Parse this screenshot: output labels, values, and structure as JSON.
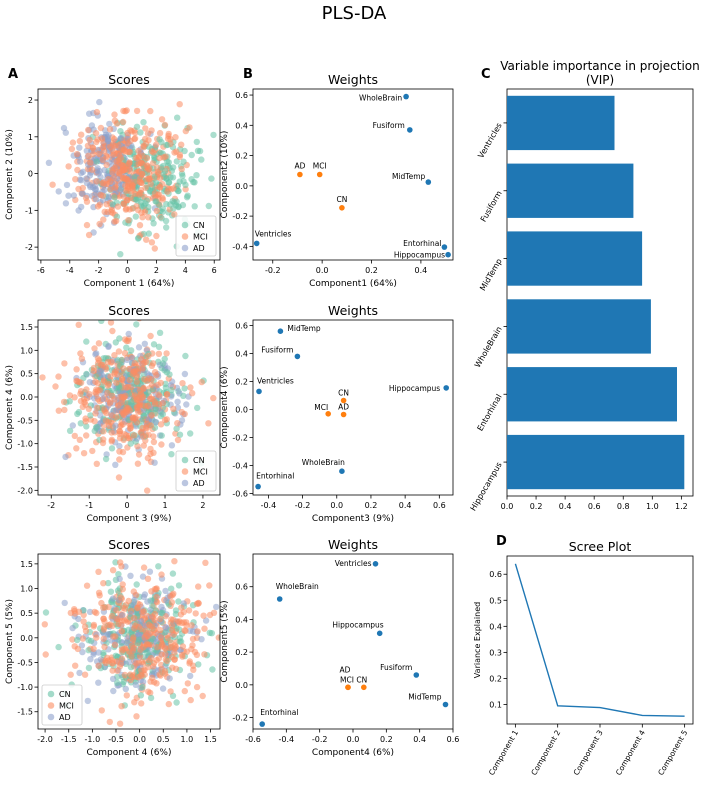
{
  "figure": {
    "title": "PLS-DA",
    "panel_letters": [
      "A",
      "B",
      "C",
      "D"
    ]
  },
  "colors": {
    "CN": "#66c2a5",
    "MCI": "#fc8d62",
    "AD": "#8da0cb",
    "outcome_point": "#ff7f0e",
    "variable_point": "#1f77b4",
    "bar": "#1f77b4",
    "line": "#1f77b4"
  },
  "chart_data": [
    {
      "id": "scores1",
      "type": "scatter",
      "title": "Scores",
      "xlabel": "Component 1 (64%)",
      "ylabel": "Component 2 (10%)",
      "xlim": [
        -6.2,
        6.4
      ],
      "ylim": [
        -2.35,
        2.3
      ],
      "xticks": [
        -6,
        -4,
        -2,
        0,
        2,
        4,
        6
      ],
      "yticks": [
        -2,
        -1,
        0,
        1,
        2
      ],
      "legend": {
        "position": "bottom-right",
        "entries": [
          "CN",
          "MCI",
          "AD"
        ]
      },
      "series": [
        {
          "name": "CN",
          "n": 220,
          "x_mean": 1.6,
          "x_sd": 1.5,
          "y_mean": -0.2,
          "y_sd": 0.7,
          "seed": 11
        },
        {
          "name": "MCI",
          "n": 360,
          "x_mean": 0.1,
          "x_sd": 1.7,
          "y_mean": 0.05,
          "y_sd": 0.7,
          "seed": 12
        },
        {
          "name": "AD",
          "n": 200,
          "x_mean": -1.7,
          "x_sd": 1.4,
          "y_mean": 0.2,
          "y_sd": 0.65,
          "seed": 13
        }
      ]
    },
    {
      "id": "weights1",
      "type": "scatter",
      "title": "Weights",
      "xlabel": "Component1 (64%)",
      "ylabel": "Component2 (10%)",
      "xlim": [
        -0.28,
        0.53
      ],
      "ylim": [
        -0.49,
        0.64
      ],
      "xticks": [
        -0.2,
        0.0,
        0.2,
        0.4
      ],
      "yticks": [
        -0.4,
        -0.2,
        0.0,
        0.2,
        0.4,
        0.6
      ],
      "points": [
        {
          "label": "WholeBrain",
          "x": 0.34,
          "y": 0.59,
          "kind": "variable",
          "anchor": "end",
          "dx": -4,
          "dy": 4
        },
        {
          "label": "Fusiform",
          "x": 0.355,
          "y": 0.37,
          "kind": "variable",
          "anchor": "end",
          "dx": -5,
          "dy": -2
        },
        {
          "label": "MidTemp",
          "x": 0.43,
          "y": 0.025,
          "kind": "variable",
          "anchor": "end",
          "dx": -3,
          "dy": -3
        },
        {
          "label": "Entorhinal",
          "x": 0.495,
          "y": -0.405,
          "kind": "variable",
          "anchor": "end",
          "dx": -3,
          "dy": -1
        },
        {
          "label": "Hippocampus",
          "x": 0.51,
          "y": -0.455,
          "kind": "variable",
          "anchor": "end",
          "dx": -3,
          "dy": 3
        },
        {
          "label": "Ventricles",
          "x": -0.265,
          "y": -0.38,
          "kind": "variable",
          "anchor": "start",
          "dx": -2,
          "dy": -7
        },
        {
          "label": "AD",
          "x": -0.09,
          "y": 0.075,
          "kind": "outcome",
          "anchor": "middle",
          "dx": 0,
          "dy": -6
        },
        {
          "label": "MCI",
          "x": -0.01,
          "y": 0.075,
          "kind": "outcome",
          "anchor": "middle",
          "dx": 0,
          "dy": -6
        },
        {
          "label": "CN",
          "x": 0.08,
          "y": -0.145,
          "kind": "outcome",
          "anchor": "middle",
          "dx": 0,
          "dy": -6
        }
      ]
    },
    {
      "id": "scores2",
      "type": "scatter",
      "title": "Scores",
      "xlabel": "Component 3 (9%)",
      "ylabel": "Component 4 (6%)",
      "xlim": [
        -2.35,
        2.45
      ],
      "ylim": [
        -2.1,
        1.65
      ],
      "xticks": [
        -2,
        -1,
        0,
        1,
        2
      ],
      "yticks": [
        -2.0,
        -1.5,
        -1.0,
        -0.5,
        0.0,
        0.5,
        1.0,
        1.5
      ],
      "legend": {
        "position": "bottom-right",
        "entries": [
          "CN",
          "MCI",
          "AD"
        ]
      },
      "series": [
        {
          "name": "CN",
          "n": 220,
          "x_mean": 0.1,
          "x_sd": 0.75,
          "y_mean": 0.05,
          "y_sd": 0.6,
          "seed": 21
        },
        {
          "name": "MCI",
          "n": 360,
          "x_mean": -0.05,
          "x_sd": 0.7,
          "y_mean": 0.0,
          "y_sd": 0.6,
          "seed": 22
        },
        {
          "name": "AD",
          "n": 200,
          "x_mean": 0.05,
          "x_sd": 0.65,
          "y_mean": -0.05,
          "y_sd": 0.55,
          "seed": 23
        }
      ]
    },
    {
      "id": "weights2",
      "type": "scatter",
      "title": "Weights",
      "xlabel": "Component3 (9%)",
      "ylabel": "Component4 (6%)",
      "xlim": [
        -0.49,
        0.68
      ],
      "ylim": [
        -0.61,
        0.64
      ],
      "xticks": [
        -0.4,
        -0.2,
        0.0,
        0.2,
        0.4,
        0.6
      ],
      "yticks": [
        -0.6,
        -0.4,
        -0.2,
        0.0,
        0.2,
        0.4,
        0.6
      ],
      "points": [
        {
          "label": "MidTemp",
          "x": -0.33,
          "y": 0.56,
          "kind": "variable",
          "anchor": "start",
          "dx": 7,
          "dy": 0
        },
        {
          "label": "Fusiform",
          "x": -0.23,
          "y": 0.38,
          "kind": "variable",
          "anchor": "end",
          "dx": -4,
          "dy": -4
        },
        {
          "label": "Ventricles",
          "x": -0.455,
          "y": 0.13,
          "kind": "variable",
          "anchor": "start",
          "dx": -2,
          "dy": -8
        },
        {
          "label": "Hippocampus",
          "x": 0.64,
          "y": 0.155,
          "kind": "variable",
          "anchor": "end",
          "dx": -6,
          "dy": 3
        },
        {
          "label": "WholeBrain",
          "x": 0.03,
          "y": -0.44,
          "kind": "variable",
          "anchor": "end",
          "dx": 3,
          "dy": -6
        },
        {
          "label": "Entorhinal",
          "x": -0.46,
          "y": -0.55,
          "kind": "variable",
          "anchor": "start",
          "dx": -2,
          "dy": -8
        },
        {
          "label": "CN",
          "x": 0.04,
          "y": 0.065,
          "kind": "outcome",
          "anchor": "middle",
          "dx": 0,
          "dy": -5
        },
        {
          "label": "MCI",
          "x": -0.05,
          "y": -0.03,
          "kind": "outcome",
          "anchor": "end",
          "dx": 0,
          "dy": -4
        },
        {
          "label": "AD",
          "x": 0.04,
          "y": -0.035,
          "kind": "outcome",
          "anchor": "middle",
          "dx": 0,
          "dy": -5
        }
      ]
    },
    {
      "id": "scores3",
      "type": "scatter",
      "title": "Scores",
      "xlabel": "Component 4 (6%)",
      "ylabel": "Component 5 (5%)",
      "xlim": [
        -2.15,
        1.7
      ],
      "ylim": [
        -1.85,
        1.7
      ],
      "xticks": [
        -2.0,
        -1.5,
        -1.0,
        -0.5,
        0.0,
        0.5,
        1.0,
        1.5
      ],
      "yticks": [
        -1.5,
        -1.0,
        -0.5,
        0.0,
        0.5,
        1.0,
        1.5
      ],
      "legend": {
        "position": "bottom-left",
        "entries": [
          "CN",
          "MCI",
          "AD"
        ]
      },
      "series": [
        {
          "name": "CN",
          "n": 220,
          "x_mean": 0.0,
          "x_sd": 0.6,
          "y_mean": 0.05,
          "y_sd": 0.6,
          "seed": 31
        },
        {
          "name": "MCI",
          "n": 360,
          "x_mean": 0.05,
          "x_sd": 0.65,
          "y_mean": 0.0,
          "y_sd": 0.6,
          "seed": 32
        },
        {
          "name": "AD",
          "n": 200,
          "x_mean": -0.05,
          "x_sd": 0.6,
          "y_mean": 0.0,
          "y_sd": 0.55,
          "seed": 33
        }
      ]
    },
    {
      "id": "weights3",
      "type": "scatter",
      "title": "Weights",
      "xlabel": "Component4 (6%)",
      "ylabel": "Component5 (5%)",
      "xlim": [
        -0.6,
        0.6
      ],
      "ylim": [
        -0.27,
        0.8
      ],
      "xticks": [
        -0.6,
        -0.4,
        -0.2,
        0.0,
        0.2,
        0.4,
        0.6
      ],
      "yticks": [
        -0.2,
        0.0,
        0.2,
        0.4,
        0.6
      ],
      "points": [
        {
          "label": "Ventricles",
          "x": 0.135,
          "y": 0.74,
          "kind": "variable",
          "anchor": "end",
          "dx": -4,
          "dy": 2
        },
        {
          "label": "WholeBrain",
          "x": -0.44,
          "y": 0.525,
          "kind": "variable",
          "anchor": "start",
          "dx": -4,
          "dy": -10
        },
        {
          "label": "Hippocampus",
          "x": 0.16,
          "y": 0.315,
          "kind": "variable",
          "anchor": "end",
          "dx": 4,
          "dy": -6
        },
        {
          "label": "Fusiform",
          "x": 0.38,
          "y": 0.06,
          "kind": "variable",
          "anchor": "end",
          "dx": -4,
          "dy": -5
        },
        {
          "label": "MidTemp",
          "x": 0.555,
          "y": -0.12,
          "kind": "variable",
          "anchor": "end",
          "dx": -4,
          "dy": -5
        },
        {
          "label": "Entorhinal",
          "x": -0.545,
          "y": -0.24,
          "kind": "variable",
          "anchor": "start",
          "dx": -2,
          "dy": -9
        },
        {
          "label": "AD",
          "x": -0.03,
          "y": -0.015,
          "kind": "outcome",
          "anchor": "middle",
          "dx": -3,
          "dy": -15
        },
        {
          "label": "MCI",
          "x": -0.03,
          "y": -0.015,
          "kind": "outcome",
          "anchor": "middle",
          "dx": -1,
          "dy": -5
        },
        {
          "label": "CN",
          "x": 0.065,
          "y": -0.015,
          "kind": "outcome",
          "anchor": "middle",
          "dx": -2,
          "dy": -5
        }
      ]
    },
    {
      "id": "vip",
      "type": "bar",
      "orientation": "horizontal",
      "title": "Variable importance in projection (VIP)",
      "title_lines": [
        "Variable importance in projection",
        "(VIP)"
      ],
      "categories": [
        "Ventricles",
        "Fusiform",
        "MidTemp",
        "WholeBrain",
        "Entorhinal",
        "Hippocampus"
      ],
      "values": [
        0.74,
        0.87,
        0.93,
        0.99,
        1.17,
        1.22
      ],
      "xlim": [
        0,
        1.28
      ],
      "xticks": [
        0.0,
        0.2,
        0.4,
        0.6,
        0.8,
        1.0,
        1.2
      ]
    },
    {
      "id": "scree",
      "type": "line",
      "title": "Scree Plot",
      "xlabel": "",
      "ylabel": "Variance Explained",
      "categories": [
        "Component 1",
        "Component 2",
        "Component 3",
        "Component 4",
        "Component 5"
      ],
      "values": [
        0.64,
        0.095,
        0.088,
        0.058,
        0.055
      ],
      "ylim": [
        0.025,
        0.67
      ],
      "yticks": [
        0.1,
        0.2,
        0.3,
        0.4,
        0.5,
        0.6
      ]
    }
  ]
}
